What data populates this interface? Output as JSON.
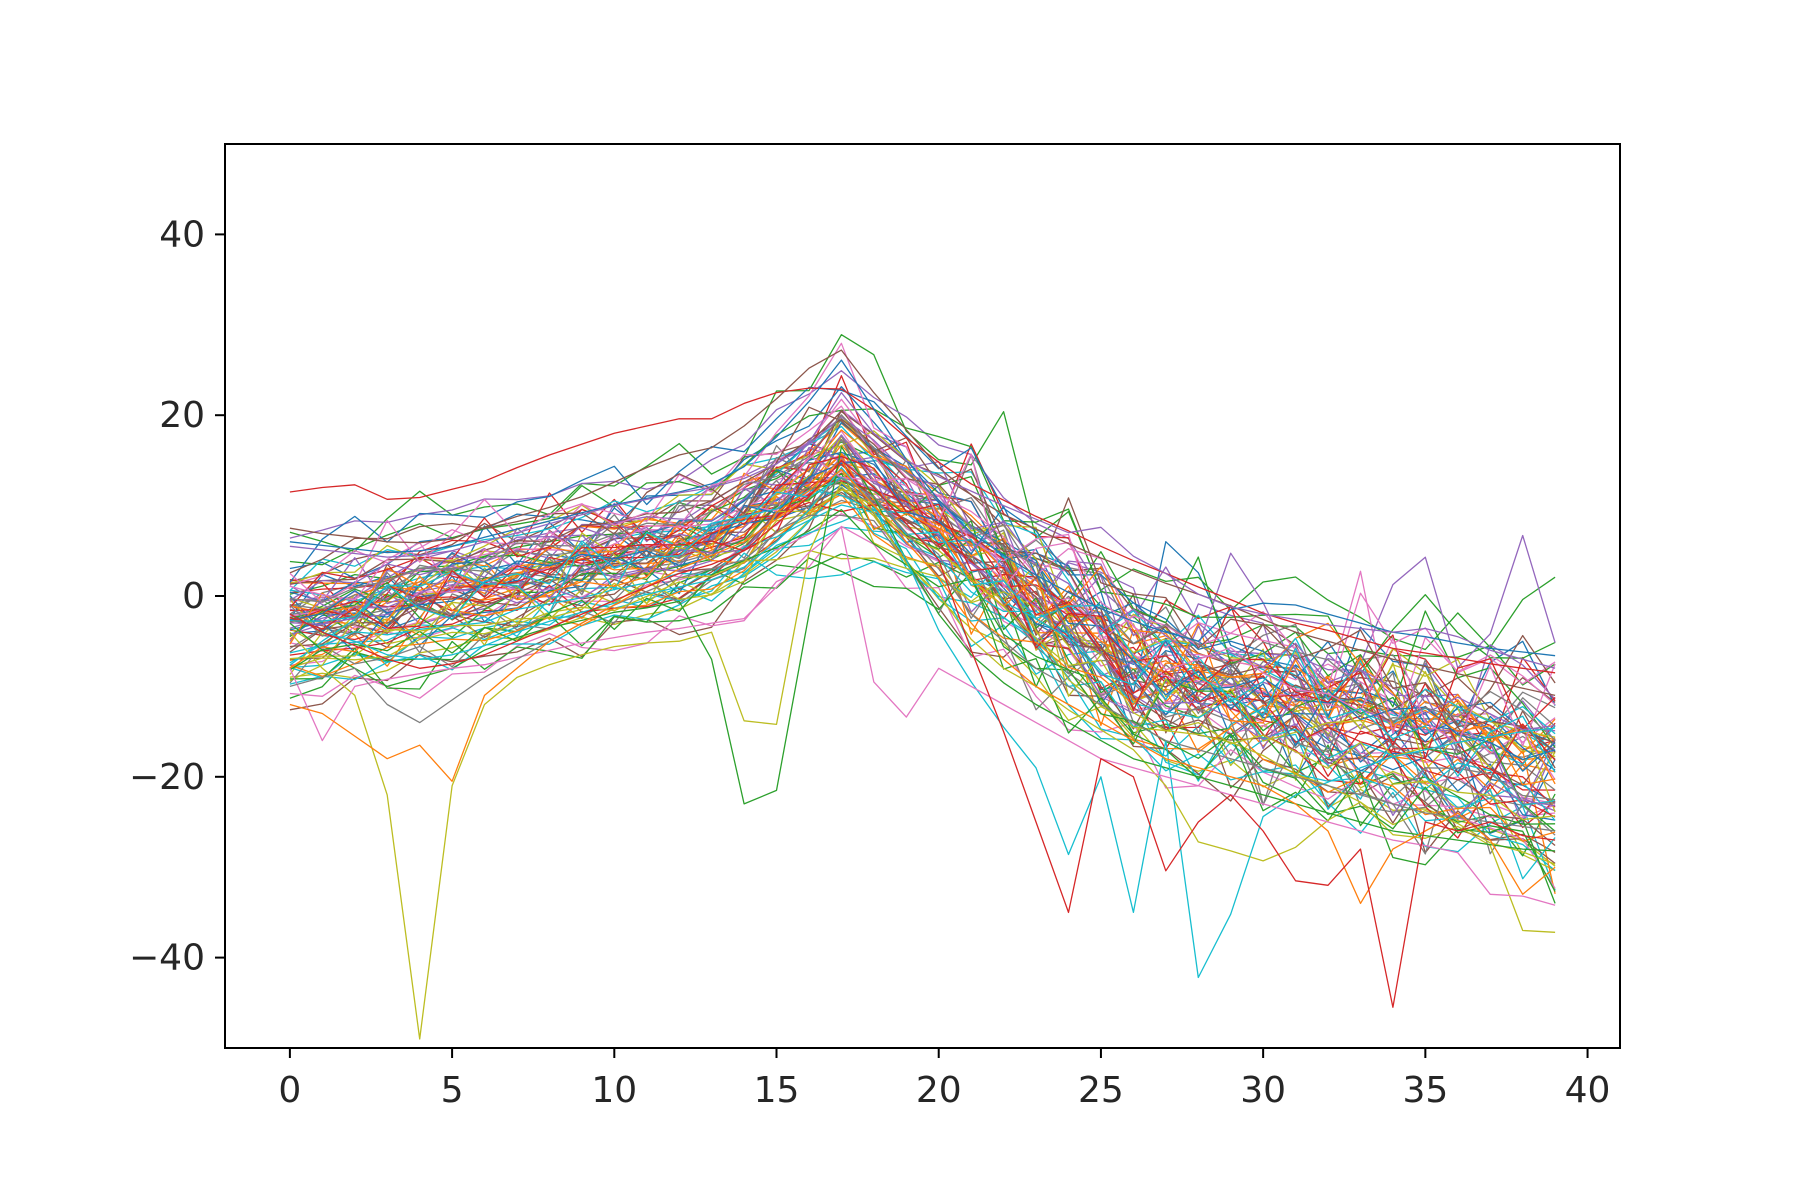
{
  "chart_data": {
    "type": "line",
    "title": "",
    "xlabel": "",
    "ylabel": "",
    "xlim": [
      -2,
      41
    ],
    "ylim": [
      -50,
      50
    ],
    "x_ticks": [
      0,
      5,
      10,
      15,
      20,
      25,
      30,
      35,
      40
    ],
    "y_ticks": [
      -40,
      -20,
      0,
      20,
      40
    ],
    "x_tick_labels": [
      "0",
      "5",
      "10",
      "15",
      "20",
      "25",
      "30",
      "35",
      "40"
    ],
    "y_tick_labels": [
      "−40",
      "−20",
      "0",
      "20",
      "40"
    ],
    "grid": false,
    "legend": "none",
    "x": [
      0,
      1,
      2,
      3,
      4,
      5,
      6,
      7,
      8,
      9,
      10,
      11,
      12,
      13,
      14,
      15,
      16,
      17,
      18,
      19,
      20,
      21,
      22,
      23,
      24,
      25,
      26,
      27,
      28,
      29,
      30,
      31,
      32,
      33,
      34,
      35,
      36,
      37,
      38,
      39
    ],
    "palette": [
      "#1f77b4",
      "#ff7f0e",
      "#2ca02c",
      "#d62728",
      "#9467bd",
      "#8c564b",
      "#e377c2",
      "#7f7f7f",
      "#bcbd22",
      "#17becf"
    ],
    "notable_series": [
      {
        "color": "#d62728",
        "values": [
          11.5,
          12.0,
          12.3,
          10.7,
          10.9,
          11.8,
          12.7,
          14.2,
          15.6,
          16.8,
          18.0,
          18.8,
          19.6,
          19.6,
          21.3,
          22.5,
          23.0,
          22.9,
          20.6,
          17.5,
          14.8,
          12.4,
          10.6,
          8.8,
          7.2,
          5.5,
          3.9,
          2.5,
          1.0,
          -0.4,
          -1.9,
          -3.0,
          -3.8,
          -4.8,
          -5.8,
          -6.3,
          -6.9,
          -7.5,
          -8.0,
          -8.5
        ]
      },
      {
        "color": "#8c564b",
        "values": [
          7.5,
          6.9,
          6.5,
          6.0,
          5.9,
          6.3,
          7.6,
          8.8,
          9.8,
          11.0,
          12.6,
          14.2,
          15.6,
          16.4,
          18.8,
          21.8,
          25.2,
          27.2,
          22.5,
          18.4,
          14.2,
          11.2,
          9.0,
          7.4,
          5.8,
          4.2,
          2.8,
          1.4,
          0.2,
          -1.1,
          -2.6,
          -4.0,
          -5.0,
          -6.0,
          -7.0,
          -7.8,
          -8.6,
          -9.4,
          -10.2,
          -11.0
        ]
      },
      {
        "color": "#bcbd22",
        "values": [
          -4.0,
          -8.0,
          -11.0,
          -22.0,
          -49.0,
          -21.0,
          -12.0,
          -9.0,
          -7.6,
          -6.5,
          -5.6,
          -5.2,
          -5.0,
          -4.0,
          -13.8,
          -14.2,
          4.8,
          12.6,
          9.2,
          3.6,
          0.2,
          -4.8,
          -8.0,
          -10.0,
          -12.6,
          -14.8,
          -17.0,
          -21.0,
          -27.2,
          -28.2,
          -29.3,
          -27.8,
          -24.8,
          -22.8,
          -26.4,
          -26.8,
          -25.5,
          -27.6,
          -37.0,
          -37.2
        ]
      },
      {
        "color": "#2ca02c",
        "values": [
          -3.0,
          -6.0,
          -8.0,
          -10.0,
          -9.0,
          -8.0,
          -6.0,
          -4.6,
          -3.5,
          -2.7,
          -1.8,
          -1.3,
          -0.6,
          -7.0,
          -23.0,
          -21.5,
          -2.0,
          16.5,
          11.0,
          4.0,
          -2.0,
          -6.5,
          -9.6,
          -12.0,
          -14.0,
          -16.0,
          -18.0,
          -19.0,
          -20.0,
          -21.0,
          -22.0,
          -23.0,
          -24.0,
          -25.0,
          -26.0,
          -26.5,
          -27.0,
          -27.5,
          -28.0,
          -28.2
        ]
      },
      {
        "color": "#17becf",
        "values": [
          -2.0,
          -4.0,
          -5.0,
          -6.5,
          -7.0,
          -6.5,
          -5.5,
          -4.0,
          -2.8,
          -1.8,
          -0.8,
          0.2,
          1.0,
          1.8,
          3.2,
          6.0,
          9.5,
          14.2,
          10.0,
          4.0,
          -3.8,
          -9.5,
          -14.5,
          -19.0,
          -28.6,
          -20.0,
          -35.0,
          -16.0,
          -42.2,
          -35.2,
          -24.4,
          -22.0,
          -20.6,
          -19.0,
          -17.8,
          -17.0,
          -16.2,
          -15.6,
          -15.0,
          -14.6
        ]
      },
      {
        "color": "#1f77b4",
        "values": [
          6.0,
          5.6,
          5.2,
          4.8,
          5.0,
          5.5,
          6.5,
          7.4,
          8.3,
          9.2,
          10.1,
          10.8,
          11.5,
          12.4,
          14.3,
          17.6,
          21.5,
          26.1,
          20.7,
          15.1,
          10.6,
          7.0,
          4.5,
          2.3,
          0.4,
          -1.4,
          -2.8,
          -4.0,
          -5.0,
          -1.5,
          -0.8,
          -1.0,
          -2.0,
          -3.0,
          -4.0,
          -4.5,
          -5.2,
          -5.8,
          -6.2,
          -6.6
        ]
      },
      {
        "color": "#9467bd",
        "values": [
          5.5,
          5.1,
          4.7,
          4.3,
          4.5,
          5.0,
          6.0,
          7.0,
          8.0,
          9.0,
          10.0,
          10.7,
          11.4,
          12.0,
          13.0,
          14.6,
          17.0,
          22.5,
          18.0,
          15.0,
          13.2,
          11.6,
          10.0,
          8.5,
          7.0,
          7.6,
          4.4,
          2.5,
          0.2,
          -1.2,
          -2.0,
          -2.6,
          -3.2,
          -3.6,
          -4.0,
          -3.6,
          -4.5,
          -6.0,
          -7.0,
          -8.0
        ]
      },
      {
        "color": "#e377c2",
        "values": [
          -8.0,
          -16.0,
          -10.0,
          -9.2,
          -8.6,
          -8.0,
          -7.6,
          -6.8,
          -6.0,
          -5.2,
          -4.6,
          -4.0,
          -3.6,
          -3.0,
          -2.5,
          1.0,
          4.8,
          7.6,
          -9.5,
          -13.4,
          -8.0,
          -10.0,
          -12.0,
          -14.0,
          -16.0,
          -18.0,
          -19.0,
          -20.0,
          -21.0,
          -22.0,
          -23.0,
          -24.0,
          -25.0,
          -26.0,
          -27.0,
          -27.6,
          -28.4,
          -33.0,
          -33.2,
          -34.2
        ]
      },
      {
        "color": "#7f7f7f",
        "values": [
          -10.0,
          -9.0,
          -8.0,
          -12.0,
          -14.0,
          -11.5,
          -9.0,
          -7.0,
          -5.0,
          -3.0,
          -1.0,
          0.5,
          2.0,
          3.0,
          4.0,
          7.0,
          10.0,
          13.0,
          11.0,
          7.0,
          3.0,
          -2.0,
          -5.0,
          -8.0,
          -10.0,
          -12.0,
          -14.0,
          -16.0,
          -17.0,
          -18.0,
          -19.0,
          -20.0,
          -21.0,
          -22.0,
          -23.0,
          -24.0,
          -24.5,
          -25.0,
          -25.5,
          -26.0
        ]
      },
      {
        "color": "#ff7f0e",
        "values": [
          -12.0,
          -13.0,
          -15.5,
          -18.0,
          -16.5,
          -20.5,
          -11.0,
          -8.0,
          -5.0,
          -3.0,
          -1.0,
          1.0,
          3.0,
          4.5,
          6.0,
          8.5,
          11.0,
          14.0,
          10.0,
          6.0,
          2.0,
          -3.0,
          -7.0,
          -10.0,
          -12.0,
          -14.0,
          -16.0,
          -18.0,
          -19.0,
          -20.0,
          -21.0,
          -23.0,
          -26.0,
          -34.0,
          -28.0,
          -26.0,
          -24.0,
          -27.0,
          -33.0,
          -30.0
        ]
      },
      {
        "color": "#d62728",
        "values": [
          -2.0,
          -4.0,
          -5.5,
          -7.0,
          -8.0,
          -7.5,
          -6.5,
          -5.0,
          -3.5,
          -2.0,
          -0.5,
          1.0,
          2.5,
          3.5,
          5.0,
          8.0,
          11.0,
          15.0,
          12.0,
          8.0,
          4.0,
          -6.0,
          -15.0,
          -25.0,
          -35.0,
          -18.0,
          -20.0,
          -30.4,
          -25.0,
          -22.0,
          -26.0,
          -31.5,
          -32.0,
          -28.0,
          -45.5,
          -25.0,
          -26.0,
          -25.0,
          -26.5,
          -27.0
        ]
      }
    ]
  }
}
